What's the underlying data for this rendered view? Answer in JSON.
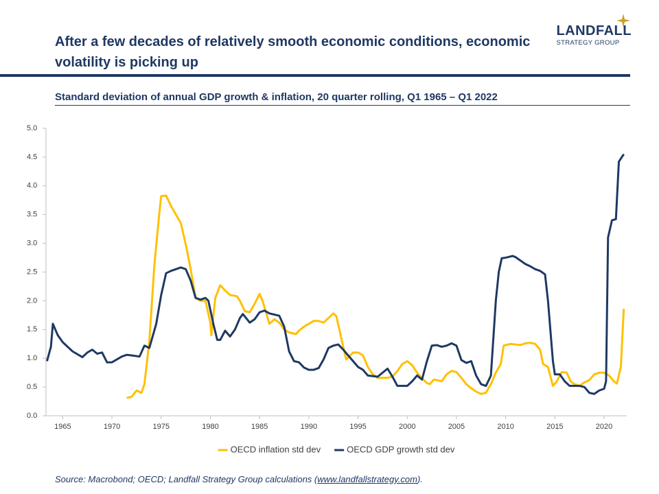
{
  "header": {
    "title": "After a few decades of relatively smooth economic conditions, economic volatility is picking up",
    "logo": {
      "name": "LANDFALL",
      "tagline": "STRATEGY GROUP"
    },
    "subtitle": "Standard deviation of annual GDP growth & inflation, 20 quarter rolling, Q1 1965 – Q1 2022"
  },
  "chart_data": {
    "type": "line",
    "xlim": [
      1963.3,
      2022.3
    ],
    "xticks": [
      1965,
      1970,
      1975,
      1980,
      1985,
      1990,
      1995,
      2000,
      2005,
      2010,
      2015,
      2020
    ],
    "ylim": [
      0,
      5
    ],
    "yticks": [
      {
        "value": 0,
        "label": "0.0"
      },
      {
        "value": 0.5,
        "label": "0.5"
      },
      {
        "value": 1,
        "label": "1.0"
      },
      {
        "value": 1.5,
        "label": "1.5"
      },
      {
        "value": 2,
        "label": "2.0"
      },
      {
        "value": 2.5,
        "label": "2.5"
      },
      {
        "value": 3,
        "label": "3.0"
      },
      {
        "value": 3.5,
        "label": "3.5"
      },
      {
        "value": 4,
        "label": "4.0"
      },
      {
        "value": 4.5,
        "label": "4.5"
      },
      {
        "value": 5,
        "label": "5.0"
      }
    ],
    "legend": "bottom",
    "series": [
      {
        "name": "OECD inflation std dev",
        "color": "#ffc000",
        "x": [
          1971.5,
          1972,
          1972.5,
          1973,
          1973.3,
          1973.8,
          1974.3,
          1974.8,
          1975,
          1975.5,
          1976,
          1976.5,
          1977,
          1977.5,
          1978,
          1978.5,
          1979,
          1979.5,
          1980,
          1980.1,
          1980.5,
          1981,
          1981.5,
          1982,
          1982.7,
          1983,
          1983.5,
          1984,
          1984.5,
          1985,
          1985.3,
          1986,
          1986.5,
          1987,
          1987.5,
          1988,
          1988.7,
          1989,
          1989.5,
          1990,
          1990.5,
          1991,
          1991.5,
          1992,
          1992.5,
          1992.8,
          1993.5,
          1993.8,
          1994.5,
          1995,
          1995.5,
          1996,
          1996.5,
          1997,
          1998,
          1998.5,
          1999,
          1999.5,
          2000,
          2000.5,
          2001,
          2001.5,
          2002,
          2002.3,
          2002.7,
          2003,
          2003.5,
          2004,
          2004.5,
          2005,
          2005.5,
          2006,
          2006.5,
          2007,
          2007.5,
          2008,
          2008.5,
          2009,
          2009.5,
          2009.8,
          2010.5,
          2011.5,
          2012,
          2012.5,
          2013,
          2013.5,
          2013.8,
          2014.3,
          2014.8,
          2015.2,
          2015.7,
          2016.2,
          2016.6,
          2017,
          2017.5,
          2018,
          2018.5,
          2019,
          2019.5,
          2020,
          2020.5,
          2021,
          2021.3,
          2021.7,
          2022
        ],
        "values": [
          0.31,
          0.33,
          0.44,
          0.4,
          0.55,
          1.3,
          2.6,
          3.5,
          3.82,
          3.83,
          3.65,
          3.5,
          3.35,
          2.98,
          2.55,
          2.05,
          2.0,
          2.0,
          1.62,
          1.4,
          2.05,
          2.27,
          2.18,
          2.1,
          2.08,
          2.0,
          1.82,
          1.8,
          1.95,
          2.12,
          2.0,
          1.6,
          1.68,
          1.62,
          1.5,
          1.45,
          1.42,
          1.48,
          1.55,
          1.6,
          1.65,
          1.65,
          1.62,
          1.7,
          1.78,
          1.73,
          1.2,
          0.98,
          1.1,
          1.1,
          1.05,
          0.85,
          0.72,
          0.66,
          0.66,
          0.68,
          0.78,
          0.9,
          0.95,
          0.88,
          0.75,
          0.65,
          0.57,
          0.55,
          0.63,
          0.62,
          0.6,
          0.72,
          0.78,
          0.76,
          0.66,
          0.55,
          0.48,
          0.42,
          0.38,
          0.4,
          0.55,
          0.75,
          0.9,
          1.22,
          1.25,
          1.23,
          1.26,
          1.27,
          1.25,
          1.15,
          0.9,
          0.85,
          0.52,
          0.6,
          0.76,
          0.75,
          0.6,
          0.55,
          0.52,
          0.58,
          0.62,
          0.72,
          0.75,
          0.75,
          0.7,
          0.6,
          0.56,
          0.85,
          1.86
        ]
      },
      {
        "name": "OECD GDP growth std dev",
        "color": "#1f3864",
        "x": [
          1963.4,
          1963.8,
          1964,
          1964.5,
          1965,
          1966,
          1967,
          1967.5,
          1968,
          1968.5,
          1969,
          1969.5,
          1970,
          1971,
          1971.5,
          1972,
          1972.8,
          1973.3,
          1973.8,
          1974.5,
          1975,
          1975.5,
          1976,
          1977,
          1977.5,
          1978,
          1978.5,
          1979,
          1979.5,
          1979.8,
          1980.3,
          1980.7,
          1981,
          1981.5,
          1982,
          1982.5,
          1983,
          1983.3,
          1984,
          1984.5,
          1985,
          1985.5,
          1986,
          1986.5,
          1987,
          1987.5,
          1988,
          1988.5,
          1989,
          1989.5,
          1990,
          1990.5,
          1991,
          1991.5,
          1992,
          1992.5,
          1993,
          1993.5,
          1994,
          1994.5,
          1995,
          1995.5,
          1996,
          1997,
          1997.5,
          1998,
          1998.5,
          1999,
          2000,
          2000.5,
          2001,
          2001.5,
          2002,
          2002.5,
          2003,
          2003.5,
          2004,
          2004.5,
          2005,
          2005.5,
          2006,
          2006.5,
          2007,
          2007.5,
          2008,
          2008.5,
          2009,
          2009.3,
          2009.6,
          2010,
          2010.7,
          2011,
          2011.5,
          2012,
          2012.5,
          2013,
          2013.5,
          2014,
          2014.3,
          2014.8,
          2015,
          2015.5,
          2016,
          2016.5,
          2017.5,
          2018,
          2018.5,
          2019,
          2019.5,
          2020,
          2020.2,
          2020.4,
          2020.8,
          2021.2,
          2021.5,
          2022
        ],
        "values": [
          0.95,
          1.2,
          1.6,
          1.4,
          1.28,
          1.12,
          1.02,
          1.1,
          1.15,
          1.08,
          1.1,
          0.93,
          0.93,
          1.03,
          1.06,
          1.05,
          1.03,
          1.22,
          1.18,
          1.6,
          2.1,
          2.48,
          2.52,
          2.58,
          2.55,
          2.35,
          2.05,
          2.02,
          2.05,
          2.0,
          1.6,
          1.32,
          1.32,
          1.48,
          1.38,
          1.5,
          1.7,
          1.77,
          1.62,
          1.68,
          1.8,
          1.83,
          1.78,
          1.76,
          1.74,
          1.55,
          1.12,
          0.95,
          0.93,
          0.84,
          0.8,
          0.8,
          0.83,
          0.98,
          1.18,
          1.22,
          1.24,
          1.15,
          1.05,
          0.95,
          0.85,
          0.8,
          0.7,
          0.68,
          0.75,
          0.82,
          0.68,
          0.52,
          0.52,
          0.6,
          0.7,
          0.63,
          0.95,
          1.22,
          1.23,
          1.2,
          1.22,
          1.26,
          1.22,
          0.97,
          0.92,
          0.95,
          0.7,
          0.55,
          0.52,
          0.7,
          2.0,
          2.5,
          2.74,
          2.75,
          2.78,
          2.76,
          2.7,
          2.64,
          2.6,
          2.55,
          2.52,
          2.46,
          2.0,
          0.95,
          0.72,
          0.72,
          0.6,
          0.52,
          0.52,
          0.5,
          0.4,
          0.38,
          0.44,
          0.47,
          0.6,
          3.1,
          3.4,
          3.42,
          4.42,
          4.55
        ]
      }
    ]
  },
  "source": {
    "prefix": "Source: Macrobond; OECD; Landfall Strategy Group calculations (",
    "link": "www.landfallstrategy.com",
    "suffix": ")."
  }
}
